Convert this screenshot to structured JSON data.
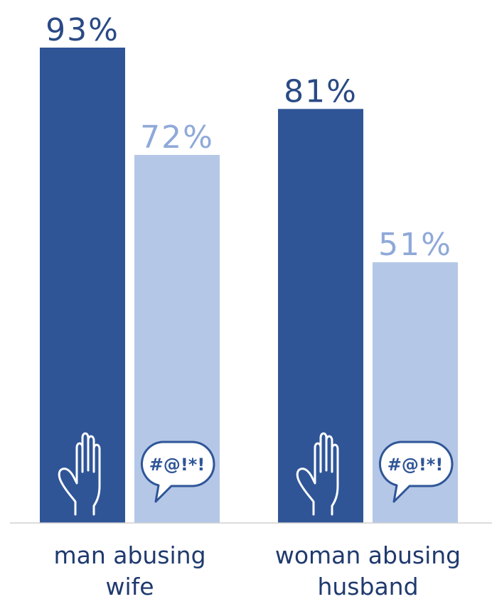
{
  "chart_data": {
    "type": "bar",
    "categories": [
      "man abusing wife",
      "woman abusing husband"
    ],
    "category_lines": [
      [
        "man abusing",
        "wife"
      ],
      [
        "woman abusing",
        "husband"
      ]
    ],
    "series": [
      {
        "values": [
          93,
          81
        ],
        "labels": [
          "93%",
          "81%"
        ],
        "color": "#2f5597",
        "label_color": "#2a4a85",
        "icon": "raised-hand-icon"
      },
      {
        "values": [
          72,
          51
        ],
        "labels": [
          "72%",
          "51%"
        ],
        "color": "#b4c7e7",
        "label_color": "#8fa9d8",
        "icon": "speech-bubble-icon",
        "icon_text": "#@!*!"
      }
    ],
    "ylim": [
      0,
      100
    ],
    "grid": false,
    "legend": "none"
  }
}
